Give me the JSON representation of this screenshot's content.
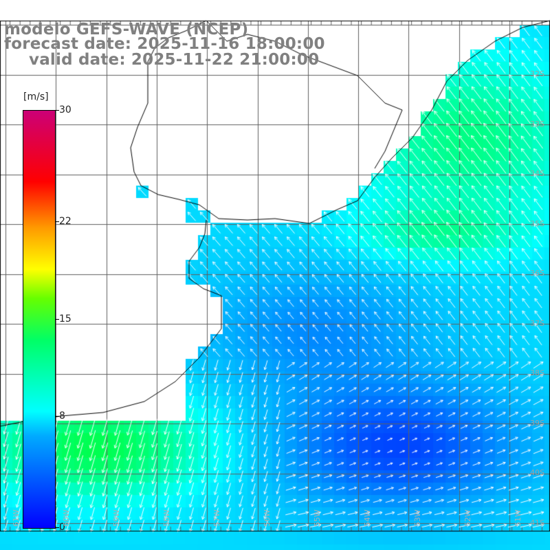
{
  "title": {
    "line1": "modelo GEFS-WAVE (NCEP)",
    "line2": "forecast date: 2025-11-16 18:00:00",
    "line3": "valid date: 2025-11-22 21:00:00"
  },
  "colorbar": {
    "unit": "[m/s]",
    "ticks": [
      "30",
      "22",
      "15",
      "8",
      "0"
    ],
    "tick_values": [
      30,
      22,
      15,
      8,
      0
    ],
    "range": [
      0,
      30
    ],
    "colors": [
      "#0000ff",
      "#00aaff",
      "#00ffff",
      "#00ff66",
      "#66ff00",
      "#ffff00",
      "#ff9900",
      "#ff0000",
      "#cc0077"
    ]
  },
  "latitude_labels": [
    "32S",
    "33S",
    "34S",
    "35S",
    "36S",
    "37S",
    "38S",
    "39S",
    "40S",
    "41S"
  ],
  "latitude_values": [
    32,
    33,
    34,
    35,
    36,
    37,
    38,
    39,
    40,
    41
  ],
  "longitude_labels": [
    "61W",
    "60W",
    "59W",
    "58W",
    "57W",
    "56W",
    "55W",
    "54W",
    "53W",
    "52W",
    "51W"
  ],
  "longitude_values": [
    61,
    60,
    59,
    58,
    57,
    56,
    55,
    54,
    53,
    52,
    51
  ],
  "map": {
    "land_color": "#ffffff",
    "coast_color": "#000000",
    "grid_color": "#555555",
    "arrow_color": "#ffffff"
  }
}
